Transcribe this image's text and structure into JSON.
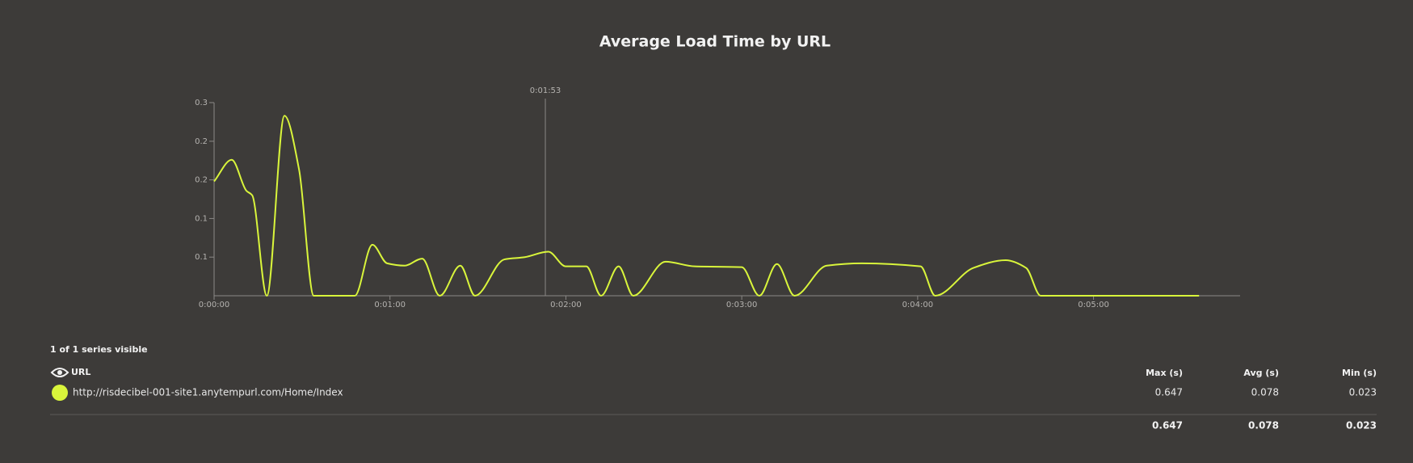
{
  "chart_data": {
    "type": "line",
    "title": "Average Load Time by URL",
    "x": [
      0,
      6,
      11,
      13,
      18,
      24,
      29,
      34,
      48,
      54,
      59,
      65,
      71,
      77,
      84,
      89,
      99,
      106,
      114,
      120,
      127,
      132,
      138,
      143,
      154,
      164,
      180,
      186,
      192,
      198,
      209,
      221,
      241,
      246,
      259,
      270,
      277,
      282,
      336
    ],
    "series": [
      {
        "name": "http://risdecibel-001-site1.anytempurl.com/Home/Index",
        "color": "#d9f53b",
        "values": [
          0.148,
          0.176,
          0.136,
          0.13,
          0,
          0.233,
          0.163,
          0,
          0,
          0.066,
          0.042,
          0.039,
          0.048,
          0,
          0.039,
          0,
          0.047,
          0.05,
          0.057,
          0.038,
          0.038,
          0,
          0.038,
          0,
          0.044,
          0.038,
          0.037,
          0,
          0.041,
          0,
          0.039,
          0.042,
          0.038,
          0,
          0.036,
          0.046,
          0.036,
          0,
          0
        ]
      }
    ],
    "xlim": [
      0,
      350
    ],
    "xticks": [
      {
        "value": 0,
        "label": "0:00:00"
      },
      {
        "value": 60,
        "label": "0:01:00"
      },
      {
        "value": 120,
        "label": "0:02:00"
      },
      {
        "value": 180,
        "label": "0:03:00"
      },
      {
        "value": 240,
        "label": "0:04:00"
      },
      {
        "value": 300,
        "label": "0:05:00"
      }
    ],
    "ylim": [
      0,
      0.25
    ],
    "yticks": [
      {
        "value": 0.05,
        "label": "0.1"
      },
      {
        "value": 0.1,
        "label": "0.1"
      },
      {
        "value": 0.15,
        "label": "0.2"
      },
      {
        "value": 0.2,
        "label": "0.2"
      },
      {
        "value": 0.25,
        "label": "0.3"
      }
    ],
    "cursor": {
      "value": 113,
      "label": "0:01:53"
    }
  },
  "table": {
    "caption": "1 of 1 series visible",
    "header": [
      "URL",
      "Max (s)",
      "Avg (s)",
      "Min (s)"
    ],
    "rows": [
      [
        "http://risdecibel-001-site1.anytempurl.com/Home/Index",
        0.647,
        0.078,
        0.023
      ]
    ],
    "totals": [
      0.647,
      0.078,
      0.023
    ]
  }
}
